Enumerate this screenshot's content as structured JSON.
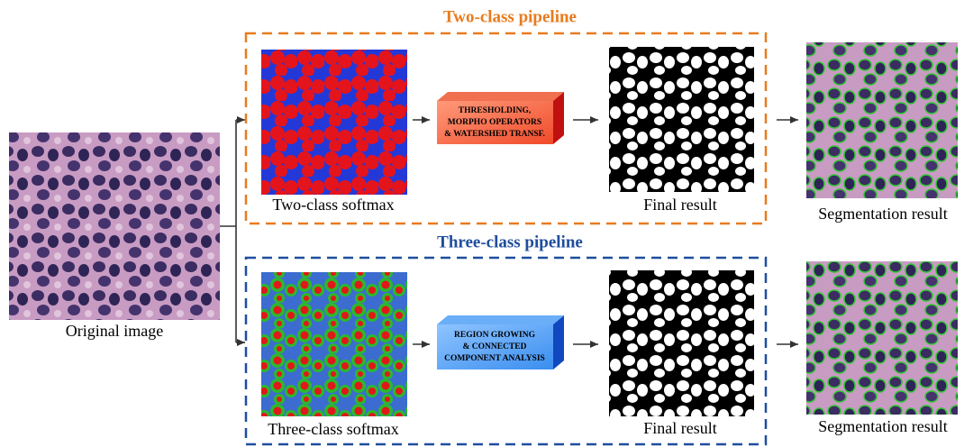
{
  "input": {
    "label": "Original image"
  },
  "two_class": {
    "title": "Two-class pipeline",
    "softmax_label": "Two-class softmax",
    "operation": [
      "THRESHOLDING,",
      "MORPHO OPERATORS",
      "& WATERSHED TRANSF."
    ],
    "final_label": "Final result",
    "segmentation_label": "Segmentation result"
  },
  "three_class": {
    "title": "Three-class pipeline",
    "softmax_label": "Three-class softmax",
    "operation": [
      "REGION GROWING",
      "& CONNECTED",
      "COMPONENT ANALYSIS"
    ],
    "final_label": "Final result",
    "segmentation_label": "Segmentation result"
  }
}
